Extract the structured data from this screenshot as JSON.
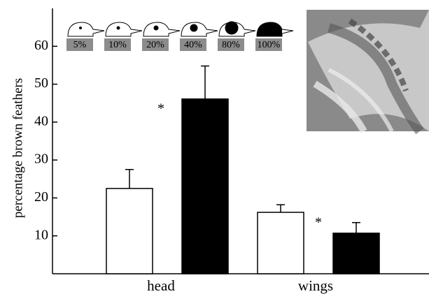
{
  "chart_data": {
    "type": "bar",
    "y_label": "percentage brown feathers",
    "categories": [
      "head",
      "wings"
    ],
    "series": [
      {
        "color": "#ffffff",
        "values": [
          22.5,
          16.2
        ],
        "errors": [
          5,
          2
        ]
      },
      {
        "color": "#000000",
        "values": [
          46.1,
          10.7
        ],
        "errors": [
          8.7,
          2.8
        ]
      }
    ],
    "significance_marks": [
      "*",
      "*"
    ],
    "icon_labels": [
      "5%",
      "10%",
      "20%",
      "40%",
      "80%",
      "100%"
    ],
    "ylim": [
      0,
      70
    ],
    "yticks": [
      10,
      20,
      30,
      40,
      50,
      60
    ]
  }
}
